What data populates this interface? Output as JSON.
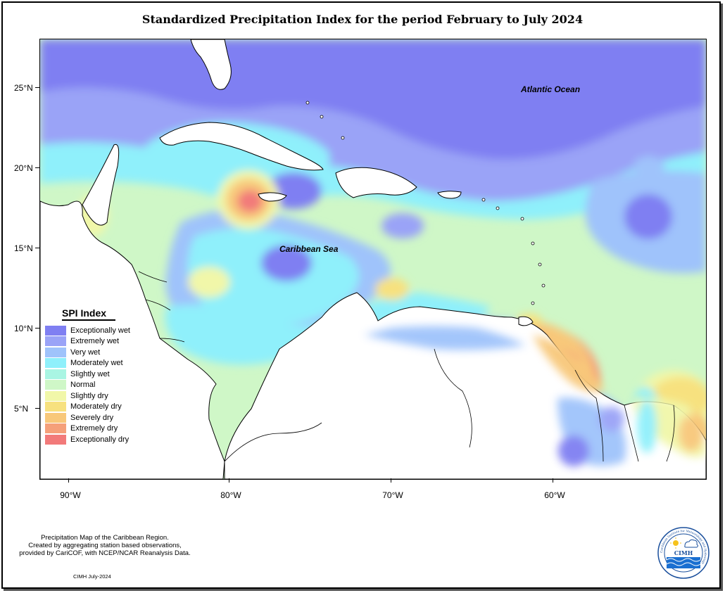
{
  "title": "Standardized Precipitation Index for the period February to July 2024",
  "axes": {
    "lon_ticks": [
      "90°W",
      "80°W",
      "70°W",
      "60°W"
    ],
    "lat_ticks": [
      "25°N",
      "20°N",
      "15°N",
      "10°N",
      "5°N"
    ]
  },
  "labels": {
    "atlantic": "Atlantic Ocean",
    "caribbean": "Caribbean Sea"
  },
  "legend": {
    "title": "SPI Index",
    "items": [
      {
        "label": "Exceptionally wet",
        "color": "#7f7ff2"
      },
      {
        "label": "Extremely wet",
        "color": "#9aa3f7"
      },
      {
        "label": "Very wet",
        "color": "#9fc3fb"
      },
      {
        "label": "Moderately wet",
        "color": "#8ff0fb"
      },
      {
        "label": "Slightly wet",
        "color": "#a9f5e3"
      },
      {
        "label": "Normal",
        "color": "#cff7c7"
      },
      {
        "label": "Slightly dry",
        "color": "#f1f7a9"
      },
      {
        "label": "Moderately dry",
        "color": "#f7e17f"
      },
      {
        "label": "Severely dry",
        "color": "#f8c87a"
      },
      {
        "label": "Extremely dry",
        "color": "#f5a07a"
      },
      {
        "label": "Exceptionally dry",
        "color": "#f27a7a"
      }
    ]
  },
  "footer": {
    "line1": "Precipitation Map of the Caribbean Region.",
    "line2": "Created by aggregating station based observations,",
    "line3": "provided by CariCOF, with NCEP/NCAR Reanalysis Data.",
    "date": "CIMH July-2024"
  },
  "logo": {
    "text": "CIMH",
    "ring_text": "Caribbean Institute for Meteorology and Hydrology"
  }
}
